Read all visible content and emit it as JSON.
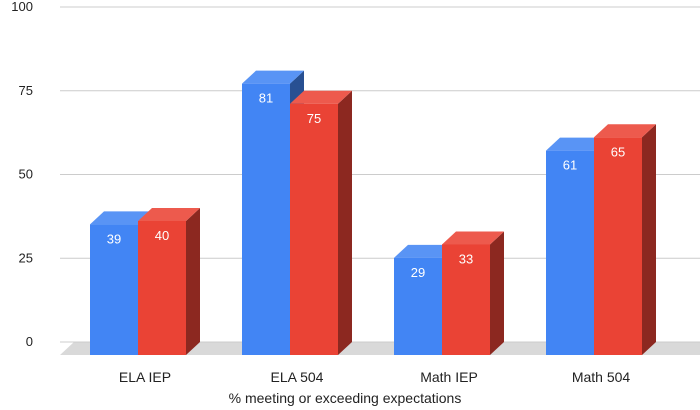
{
  "chart_data": {
    "type": "bar",
    "style": "3d-clustered-column",
    "categories": [
      "ELA IEP",
      "ELA 504",
      "Math IEP",
      "Math 504"
    ],
    "series": [
      {
        "values": [
          39,
          81,
          29,
          61
        ],
        "color": "#4285f4"
      },
      {
        "values": [
          40,
          75,
          33,
          65
        ],
        "color": "#ea4335"
      }
    ],
    "data_labels": true,
    "xlabel": "% meeting or exceeding expectations",
    "ylabel": "",
    "ylim": [
      0,
      100
    ],
    "yticks": [
      0,
      25,
      50,
      75,
      100
    ],
    "grid": true,
    "legend": "none"
  }
}
